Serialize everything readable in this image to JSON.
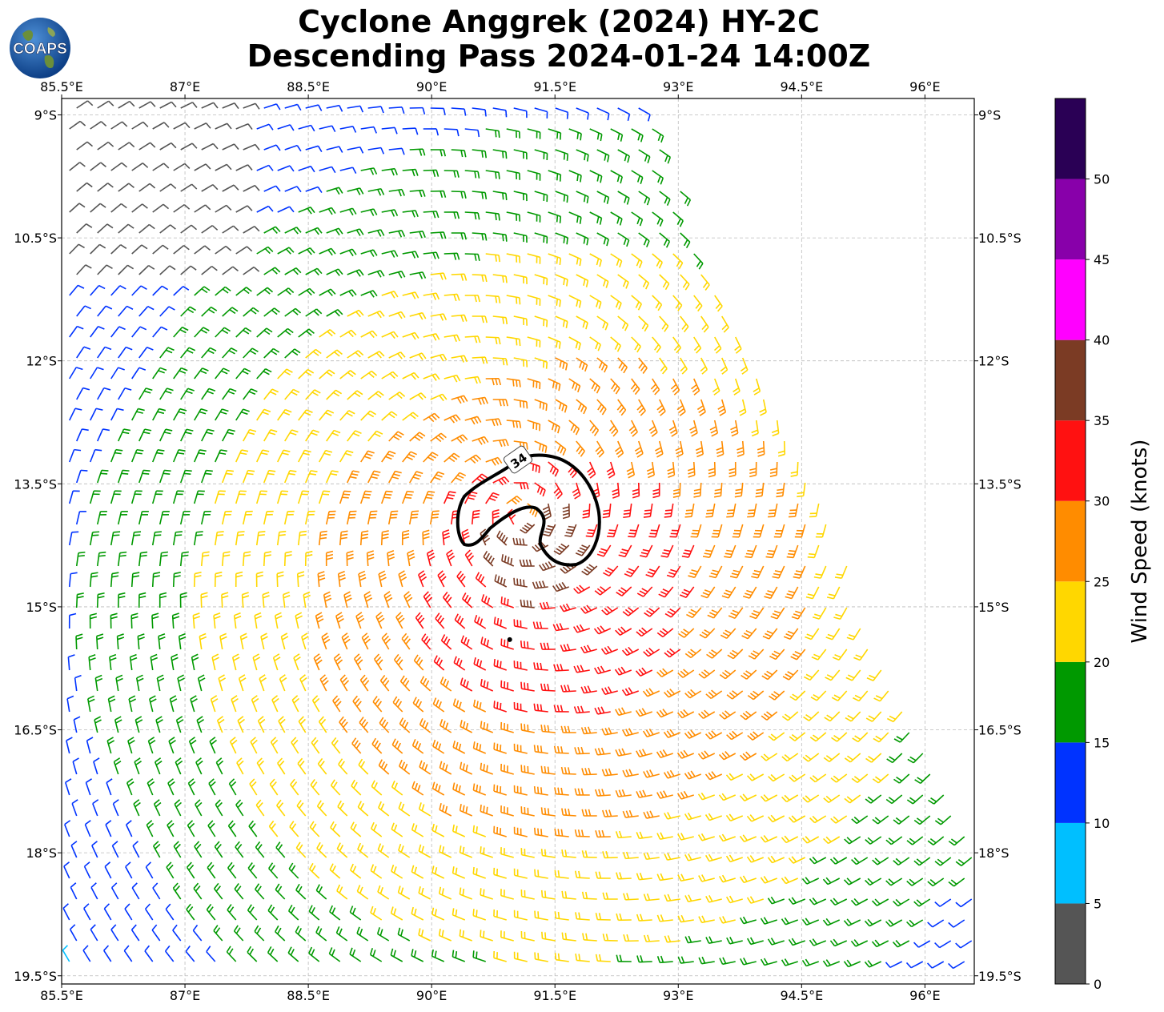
{
  "title_line1": "Cyclone Anggrek (2024) HY-2C",
  "title_line2": "Descending Pass 2024-01-24 14:00Z",
  "logo_text": "COAPS",
  "chart_data": {
    "type": "wind-barb map",
    "x_ticks": [
      "85.5°E",
      "87°E",
      "88.5°E",
      "90°E",
      "91.5°E",
      "93°E",
      "94.5°E",
      "96°E"
    ],
    "x_tick_values": [
      85.5,
      87,
      88.5,
      90,
      91.5,
      93,
      94.5,
      96
    ],
    "y_ticks": [
      "9°S",
      "10.5°S",
      "12°S",
      "13.5°S",
      "15°S",
      "16.5°S",
      "18°S",
      "19.5°S"
    ],
    "y_tick_values": [
      -9,
      -10.5,
      -12,
      -13.5,
      -15,
      -16.5,
      -18,
      -19.5
    ],
    "xlim": [
      85.5,
      96.6
    ],
    "ylim": [
      -19.6,
      -8.8
    ],
    "grid": true,
    "center": {
      "lon": 91.1,
      "lat": -13.9
    },
    "storm_position": {
      "lon": 90.95,
      "lat": -15.4
    },
    "contour_label": "34",
    "colorbar": {
      "label": "Wind Speed (knots)",
      "levels": [
        0,
        5,
        10,
        15,
        20,
        25,
        30,
        35,
        40,
        45,
        50,
        55
      ],
      "tick_labels": [
        "0",
        "5",
        "10",
        "15",
        "20",
        "25",
        "30",
        "35",
        "40",
        "45",
        "50"
      ],
      "colors": [
        "#555555",
        "#00bfff",
        "#0033ff",
        "#009900",
        "#ffd700",
        "#ff8c00",
        "#ff1111",
        "#7b3b24",
        "#ff00ff",
        "#8800aa",
        "#2a0055"
      ]
    }
  }
}
